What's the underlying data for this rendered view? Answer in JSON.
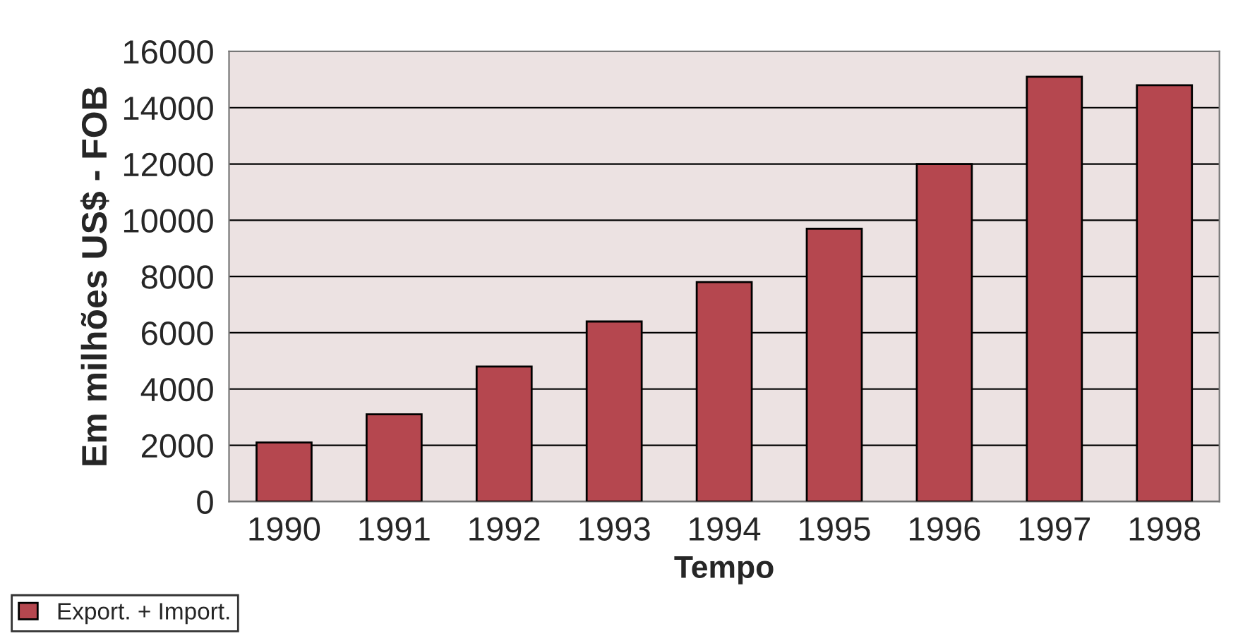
{
  "chart_data": {
    "type": "bar",
    "xlabel": "Tempo",
    "ylabel": "Em milhões US$ - FOB",
    "categories": [
      "1990",
      "1991",
      "1992",
      "1993",
      "1994",
      "1995",
      "1996",
      "1997",
      "1998"
    ],
    "series": [
      {
        "name": "Export. + Import.",
        "color": "#b5474f",
        "values": [
          2100,
          3100,
          4800,
          6400,
          7800,
          9700,
          12000,
          15100,
          14800
        ]
      }
    ],
    "ylim": [
      0,
      16000
    ],
    "yticks": [
      0,
      2000,
      4000,
      6000,
      8000,
      10000,
      12000,
      14000,
      16000
    ],
    "grid": "y",
    "legend": "bottom left"
  }
}
